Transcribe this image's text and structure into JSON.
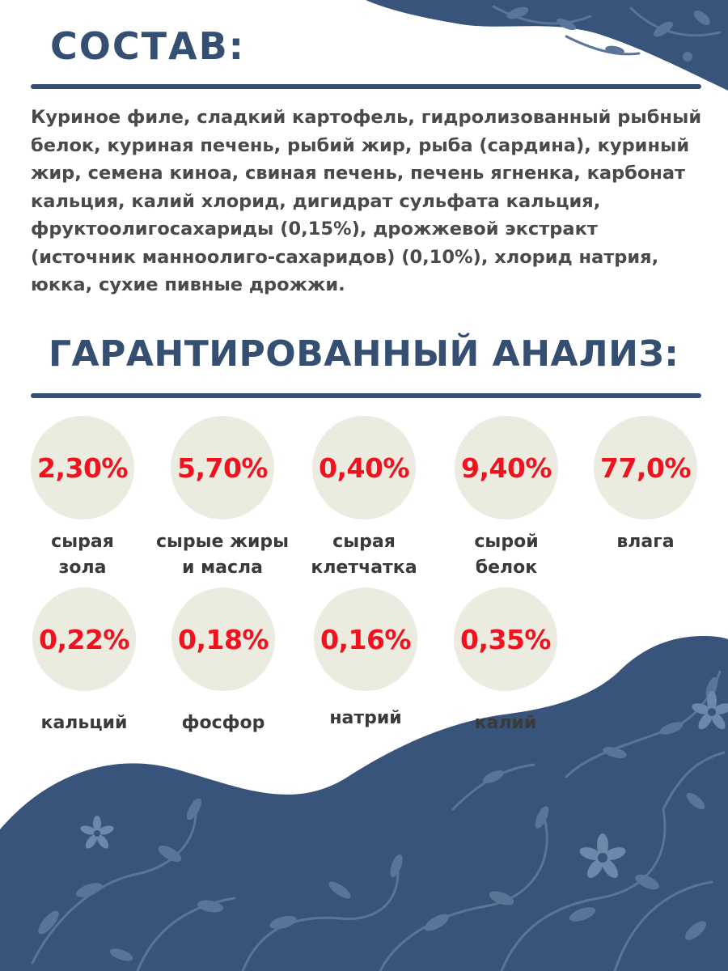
{
  "composition": {
    "title": "СОСТАВ:",
    "text": "Куриное филе, сладкий картофель, гидролизованный рыбный белок, куриная печень, рыбий жир, рыба (сардина), куриный жир, семена киноа, свиная печень, печень ягненка, карбонат кальция, калий хлорид, дигидрат сульфата кальция, фруктоолигосахариды (0,15%), дрожжевой экстракт (источник манноолиго-сахаридов) (0,10%), хлорид натрия, юкка, сухие пивные дрожжи."
  },
  "analysis": {
    "title": "ГАРАНТИРОВАННЫЙ АНАЛИЗ:",
    "items": [
      {
        "value": "2,30%",
        "label": "сырая зола"
      },
      {
        "value": "5,70%",
        "label": "сырые жиры и масла"
      },
      {
        "value": "0,40%",
        "label": "сырая клетчатка"
      },
      {
        "value": "9,40%",
        "label": "сырой белок"
      },
      {
        "value": "77,0%",
        "label": "влага"
      },
      {
        "value": "0,22%",
        "label": "кальций"
      },
      {
        "value": "0,18%",
        "label": "фосфор"
      },
      {
        "value": "0,16%",
        "label": "натрий"
      },
      {
        "value": "0,35%",
        "label": "калий"
      }
    ]
  },
  "colors": {
    "heading": "#344f72",
    "value": "#f0121e",
    "circle": "#ecebe0",
    "pattern_background": "#38547a"
  },
  "decoration": {
    "pattern": "floral-leaf-pattern"
  }
}
